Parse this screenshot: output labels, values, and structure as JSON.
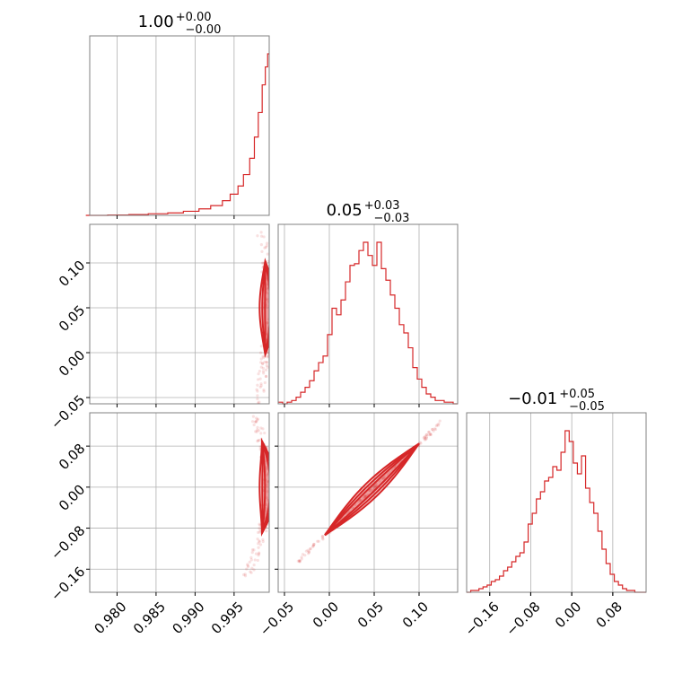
{
  "figure": {
    "kind": "corner plot",
    "color": "#d62728"
  },
  "chart_data": [
    {
      "type": "histogram",
      "param": 0,
      "title": {
        "main": "1.00",
        "plus": "+0.00",
        "minus": "−0.00"
      },
      "xlim": [
        0.9765,
        0.9995
      ],
      "bins_x": [
        0.976,
        0.9788,
        0.9815,
        0.984,
        0.9865,
        0.9885,
        0.9905,
        0.992,
        0.9935,
        0.9945,
        0.9955,
        0.9962,
        0.997,
        0.9976,
        0.9981,
        0.9986,
        0.999,
        0.9993,
        0.9995
      ],
      "counts": [
        0,
        0.2,
        0.5,
        1,
        1.5,
        2.5,
        4,
        6,
        9,
        13,
        18,
        25,
        35,
        48,
        63,
        80,
        91,
        99
      ],
      "ticks": [],
      "tick_labels": []
    },
    {
      "type": "histogram",
      "param": 1,
      "title": {
        "main": "0.05",
        "plus": "+0.03",
        "minus": "−0.03"
      },
      "xlim": [
        -0.057,
        0.143
      ],
      "bins_x": [
        -0.057,
        -0.052,
        -0.047,
        -0.042,
        -0.037,
        -0.032,
        -0.027,
        -0.022,
        -0.017,
        -0.012,
        -0.007,
        -0.002,
        0.003,
        0.008,
        0.013,
        0.018,
        0.023,
        0.028,
        0.033,
        0.038,
        0.043,
        0.048,
        0.053,
        0.058,
        0.063,
        0.068,
        0.073,
        0.078,
        0.083,
        0.088,
        0.093,
        0.098,
        0.103,
        0.108,
        0.113,
        0.118,
        0.123,
        0.128,
        0.133,
        0.138,
        0.143
      ],
      "counts": [
        1,
        0,
        1,
        2,
        4,
        7,
        10,
        14,
        20,
        25,
        29,
        42,
        58,
        54,
        63,
        74,
        84,
        85,
        93,
        98,
        90,
        84,
        98,
        82,
        75,
        66,
        58,
        48,
        43,
        34,
        22,
        15,
        10,
        6,
        4,
        2,
        2,
        1,
        1,
        0
      ],
      "ticks": [
        -0.05,
        0.0,
        0.05,
        0.1
      ],
      "tick_labels": [
        "−0.05",
        "0.00",
        "0.05",
        "0.10"
      ]
    },
    {
      "type": "histogram",
      "param": 2,
      "title": {
        "main": "−0.01",
        "plus": "+0.05",
        "minus": "−0.05"
      },
      "xlim": [
        -0.205,
        0.145
      ],
      "bins_x": [
        -0.205,
        -0.197,
        -0.189,
        -0.181,
        -0.173,
        -0.165,
        -0.157,
        -0.149,
        -0.141,
        -0.133,
        -0.125,
        -0.117,
        -0.109,
        -0.101,
        -0.093,
        -0.085,
        -0.077,
        -0.069,
        -0.061,
        -0.053,
        -0.045,
        -0.037,
        -0.029,
        -0.021,
        -0.013,
        -0.005,
        0.003,
        0.011,
        0.019,
        0.027,
        0.035,
        0.043,
        0.051,
        0.059,
        0.067,
        0.075,
        0.083,
        0.091,
        0.099,
        0.107,
        0.115,
        0.123,
        0.131,
        0.139,
        0.145
      ],
      "counts": [
        0,
        1,
        1,
        2,
        3,
        4,
        6,
        7,
        9,
        12,
        14,
        17,
        20,
        22,
        28,
        38,
        44,
        52,
        56,
        62,
        64,
        70,
        68,
        78,
        90,
        84,
        72,
        66,
        76,
        58,
        50,
        44,
        34,
        24,
        16,
        10,
        6,
        4,
        2,
        1,
        1,
        0,
        0,
        0
      ],
      "ticks": [
        -0.16,
        -0.08,
        0.0,
        0.08
      ],
      "tick_labels": [
        "−0.16",
        "−0.08",
        "0.00",
        "0.08"
      ]
    },
    {
      "type": "contour",
      "pair": [
        0,
        1
      ],
      "xlim": [
        0.9765,
        0.9995
      ],
      "ylim": [
        -0.057,
        0.143
      ],
      "xticks": [
        0.98,
        0.985,
        0.99,
        0.995
      ],
      "xtick_labels": [
        "0.980",
        "0.985",
        "0.990",
        "0.995"
      ],
      "yticks": [
        -0.05,
        0.0,
        0.05,
        0.1
      ],
      "ytick_labels": [
        "−0.05",
        "0.00",
        "0.05",
        "0.10"
      ],
      "curve": "x = 0.9993 - 0.115 * (y - 0.05)^2",
      "level_halfwidths": [
        0.025,
        0.035,
        0.045
      ],
      "scatter_y_range": [
        -0.06,
        0.135
      ]
    },
    {
      "type": "contour",
      "pair": [
        0,
        2
      ],
      "xlim": [
        0.9765,
        0.9995
      ],
      "ylim": [
        -0.205,
        0.145
      ],
      "xticks": [
        0.98,
        0.985,
        0.99,
        0.995
      ],
      "xtick_labels": [
        "0.980",
        "0.985",
        "0.990",
        "0.995"
      ],
      "yticks": [
        -0.16,
        -0.08,
        0.0,
        0.08
      ],
      "ytick_labels": [
        "−0.16",
        "−0.08",
        "0.00",
        "0.08"
      ],
      "curve": "x = 0.9993 - 0.09 * (y - 0.0)^2",
      "level_halfwidths": [
        0.03,
        0.045,
        0.06
      ],
      "scatter_y_range": [
        -0.175,
        0.14
      ]
    },
    {
      "type": "contour",
      "pair": [
        1,
        2
      ],
      "xlim": [
        -0.057,
        0.143
      ],
      "ylim": [
        -0.205,
        0.145
      ],
      "xticks": [
        -0.05,
        0.0,
        0.05,
        0.1
      ],
      "xtick_labels": [
        "−0.05",
        "0.00",
        "0.05",
        "0.10"
      ],
      "yticks": [
        -0.16,
        -0.08,
        0.0,
        0.08
      ],
      "ytick_labels": [
        "−0.16",
        "−0.08",
        "0.00",
        "0.08"
      ],
      "curve": "y = 1.7 * (x - 0.05)",
      "level_halfwidths": [
        0.03,
        0.04,
        0.05
      ],
      "scatter_x_range": [
        -0.035,
        0.125
      ]
    }
  ]
}
